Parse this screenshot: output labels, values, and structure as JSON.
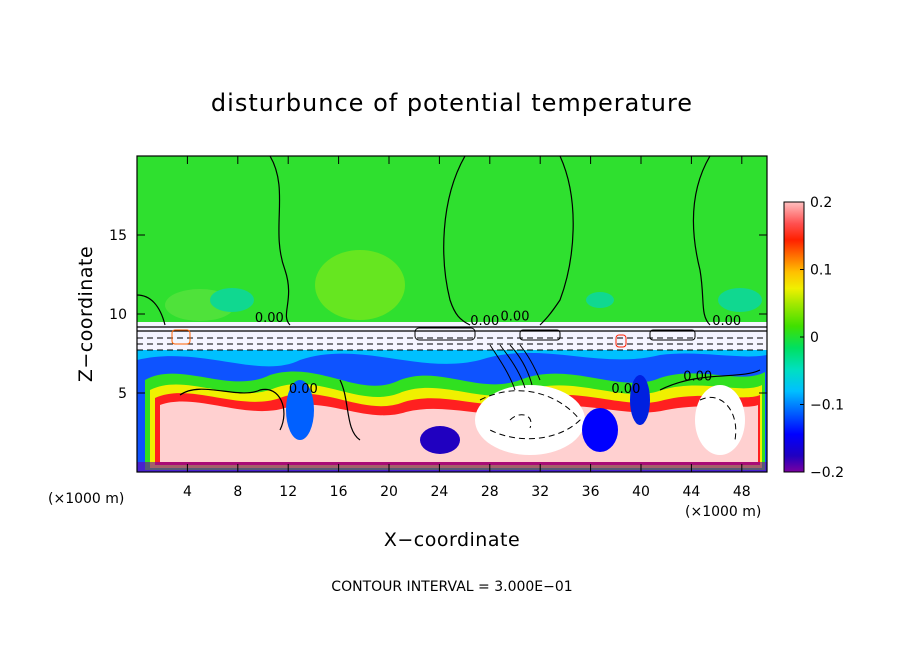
{
  "chart_data": {
    "type": "heatmap",
    "title": "disturbunce of potential temperature",
    "xlabel": "X−coordinate",
    "ylabel": "Z−coordinate",
    "x_unit_left": "(×1000 m)",
    "x_unit_right": "(×1000 m)",
    "xlim": [
      0,
      50
    ],
    "ylim": [
      0,
      20
    ],
    "x_ticks": [
      4,
      8,
      12,
      16,
      20,
      24,
      28,
      32,
      36,
      40,
      44,
      48
    ],
    "x_tick_labels": [
      "4",
      "8",
      "12",
      "16",
      "20",
      "24",
      "28",
      "32",
      "36",
      "40",
      "44",
      "48"
    ],
    "y_ticks": [
      5,
      10,
      15
    ],
    "y_tick_labels": [
      "5",
      "10",
      "15"
    ],
    "colorbar": {
      "range": [
        -0.2,
        0.2
      ],
      "tick_values": [
        0.2,
        0.1,
        0,
        -0.1,
        -0.2
      ],
      "tick_labels": [
        "0.2",
        "0.1",
        "0",
        "−0.1",
        "−0.2"
      ],
      "colors": [
        "#800080",
        "#9000c0",
        "#2000c0",
        "#0000ff",
        "#0050ff",
        "#0090ff",
        "#00c8ff",
        "#00e8c8",
        "#00e090",
        "#20e040",
        "#50e000",
        "#90e000",
        "#c8f000",
        "#f0f000",
        "#ffc800",
        "#ff8c00",
        "#ff4000",
        "#ff0000",
        "#ff6060",
        "#ffa0a0",
        "#ffc8c8"
      ]
    },
    "contour_labels": [
      {
        "text": "0.00",
        "x": 10.5,
        "z": 9.5
      },
      {
        "text": "0.00",
        "x": 13.2,
        "z": 5.0
      },
      {
        "text": "0.00",
        "x": 27.6,
        "z": 9.3
      },
      {
        "text": "0.00",
        "x": 30.0,
        "z": 9.6
      },
      {
        "text": "0.00",
        "x": 38.8,
        "z": 5.0
      },
      {
        "text": "0.00",
        "x": 44.5,
        "z": 5.8
      },
      {
        "text": "0.00",
        "x": 46.8,
        "z": 9.3
      }
    ],
    "contour_interval_label": "CONTOUR INTERVAL =",
    "contour_interval_value": "3.000E−01"
  }
}
